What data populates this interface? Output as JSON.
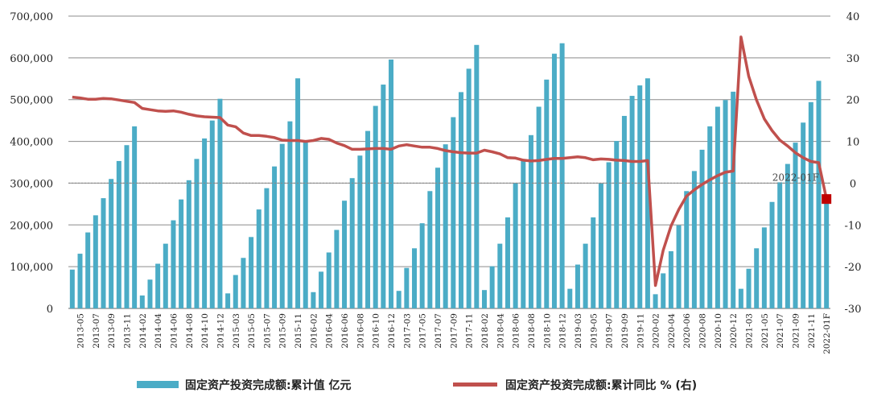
{
  "chart_data": {
    "type": "bar+line",
    "title": "",
    "colors": {
      "bars": "#4bacc6",
      "line": "#c0504d",
      "marker": "#c00000",
      "grid": "#8c8c8c"
    },
    "left_axis": {
      "ylim": [
        0,
        700000
      ],
      "ticks": [
        0,
        100000,
        200000,
        300000,
        400000,
        500000,
        600000,
        700000
      ],
      "tick_labels": [
        "0",
        "100,000",
        "200,000",
        "300,000",
        "400,000",
        "500,000",
        "600,000",
        "700,000"
      ]
    },
    "right_axis": {
      "ylim": [
        -30,
        40
      ],
      "ticks": [
        -30,
        -20,
        -10,
        0,
        10,
        20,
        30,
        40
      ],
      "tick_labels": [
        "-30",
        "-20",
        "-10",
        "0",
        "10",
        "20",
        "30",
        "40"
      ]
    },
    "x_tick_labels": [
      "2013-05",
      "2013-07",
      "2013-09",
      "2013-11",
      "2014-02",
      "2014-04",
      "2014-06",
      "2014-08",
      "2014-10",
      "2014-12",
      "2015-03",
      "2015-05",
      "2015-07",
      "2015-09",
      "2015-11",
      "2016-02",
      "2016-04",
      "2016-06",
      "2016-08",
      "2016-10",
      "2016-12",
      "2017-03",
      "2017-05",
      "2017-07",
      "2017-09",
      "2017-11",
      "2018-02",
      "2018-04",
      "2018-06",
      "2018-08",
      "2018-10",
      "2018-12",
      "2019-03",
      "2019-05",
      "2019-07",
      "2019-09",
      "2019-11",
      "2020-02",
      "2020-04",
      "2020-06",
      "2020-08",
      "2020-10",
      "2020-12",
      "2021-03",
      "2021-05",
      "2021-07",
      "2021-09",
      "2021-11",
      "2022-01F"
    ],
    "periods": [
      "2013-04",
      "2013-05",
      "2013-06",
      "2013-07",
      "2013-08",
      "2013-09",
      "2013-10",
      "2013-11",
      "2013-12",
      "2014-02",
      "2014-03",
      "2014-04",
      "2014-05",
      "2014-06",
      "2014-07",
      "2014-08",
      "2014-09",
      "2014-10",
      "2014-11",
      "2014-12",
      "2015-02",
      "2015-03",
      "2015-04",
      "2015-05",
      "2015-06",
      "2015-07",
      "2015-08",
      "2015-09",
      "2015-10",
      "2015-11",
      "2015-12",
      "2016-02",
      "2016-03",
      "2016-04",
      "2016-05",
      "2016-06",
      "2016-07",
      "2016-08",
      "2016-09",
      "2016-10",
      "2016-11",
      "2016-12",
      "2017-02",
      "2017-03",
      "2017-04",
      "2017-05",
      "2017-06",
      "2017-07",
      "2017-08",
      "2017-09",
      "2017-10",
      "2017-11",
      "2017-12",
      "2018-02",
      "2018-03",
      "2018-04",
      "2018-05",
      "2018-06",
      "2018-07",
      "2018-08",
      "2018-09",
      "2018-10",
      "2018-11",
      "2018-12",
      "2019-02",
      "2019-03",
      "2019-04",
      "2019-05",
      "2019-06",
      "2019-07",
      "2019-08",
      "2019-09",
      "2019-10",
      "2019-11",
      "2019-12",
      "2020-02",
      "2020-03",
      "2020-04",
      "2020-05",
      "2020-06",
      "2020-07",
      "2020-08",
      "2020-09",
      "2020-10",
      "2020-11",
      "2020-12",
      "2021-02",
      "2021-03",
      "2021-04",
      "2021-05",
      "2021-06",
      "2021-07",
      "2021-08",
      "2021-09",
      "2021-10",
      "2021-11",
      "2021-12",
      "2022-01F"
    ],
    "series": [
      {
        "name": "固定资产投资完成额:累计值 亿元",
        "type": "bar",
        "axis": "left",
        "values": [
          93000,
          131000,
          182000,
          223000,
          264000,
          310000,
          353000,
          391000,
          436000,
          31000,
          69000,
          107000,
          155000,
          211000,
          261000,
          307000,
          358000,
          407000,
          450000,
          502000,
          36000,
          80000,
          121000,
          171000,
          237000,
          288000,
          340000,
          394000,
          448000,
          551000,
          400000,
          39000,
          88000,
          134000,
          188000,
          258000,
          312000,
          366000,
          425000,
          485000,
          536000,
          596000,
          42000,
          97000,
          144000,
          204000,
          281000,
          337000,
          393000,
          458000,
          518000,
          574000,
          631000,
          44000,
          101000,
          155000,
          218000,
          300000,
          355000,
          415000,
          483000,
          548000,
          610000,
          635000,
          47000,
          105000,
          155000,
          218000,
          299000,
          350000,
          401000,
          461000,
          509000,
          534000,
          551000,
          34000,
          84000,
          137000,
          199000,
          281000,
          329000,
          380000,
          436000,
          483000,
          499000,
          519000,
          47000,
          95000,
          144000,
          194000,
          255000,
          302000,
          346000,
          397000,
          445000,
          494000,
          545000,
          270000
        ]
      },
      {
        "name": "固定资产投资完成额:累计同比 % (右)",
        "type": "line",
        "axis": "right",
        "values": [
          20.6,
          20.4,
          20.1,
          20.1,
          20.3,
          20.2,
          19.9,
          19.6,
          19.3,
          17.9,
          17.6,
          17.3,
          17.2,
          17.3,
          17.0,
          16.5,
          16.1,
          15.9,
          15.8,
          15.7,
          13.9,
          13.5,
          12.0,
          11.4,
          11.4,
          11.2,
          10.9,
          10.3,
          10.2,
          10.2,
          10.0,
          10.2,
          10.7,
          10.5,
          9.6,
          9.0,
          8.1,
          8.1,
          8.2,
          8.3,
          8.3,
          8.1,
          8.9,
          9.2,
          8.9,
          8.6,
          8.6,
          8.3,
          7.8,
          7.5,
          7.3,
          7.2,
          7.2,
          7.9,
          7.5,
          7.0,
          6.1,
          6.0,
          5.5,
          5.3,
          5.4,
          5.7,
          5.9,
          5.9,
          6.1,
          6.3,
          6.1,
          5.6,
          5.8,
          5.7,
          5.5,
          5.4,
          5.2,
          5.2,
          5.4,
          -24.5,
          -16.1,
          -10.3,
          -6.3,
          -3.1,
          -1.6,
          -0.3,
          0.8,
          1.8,
          2.6,
          2.9,
          35.0,
          25.6,
          19.9,
          15.4,
          12.6,
          10.3,
          8.9,
          7.3,
          6.1,
          5.2,
          4.9,
          -3.8
        ]
      }
    ],
    "annotation": "2022-01F",
    "legend": "bottom"
  }
}
